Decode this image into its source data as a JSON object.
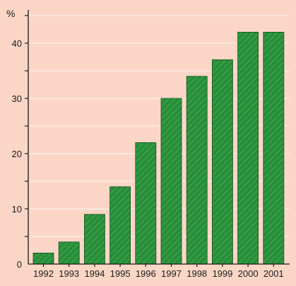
{
  "chart_data": {
    "type": "bar",
    "categories": [
      "1992",
      "1993",
      "1994",
      "1995",
      "1996",
      "1997",
      "1998",
      "1999",
      "2000",
      "2001"
    ],
    "values": [
      2,
      4,
      9,
      14,
      22,
      30,
      34,
      37,
      42,
      42
    ],
    "y_unit_label": "%",
    "ylim": [
      0,
      45
    ],
    "y_ticks": [
      0,
      10,
      20,
      30,
      40
    ],
    "y_tick_labels": [
      "0",
      "10",
      "20",
      "30",
      "40"
    ],
    "grid": true,
    "colors": {
      "background": "#fbd6c6",
      "bar_fill": "#2f9a3f",
      "bar_stripe": "#26843a",
      "bar_edge": "#14521f",
      "gridline": "#f5efe8",
      "axis": "#1a1a1a"
    }
  }
}
